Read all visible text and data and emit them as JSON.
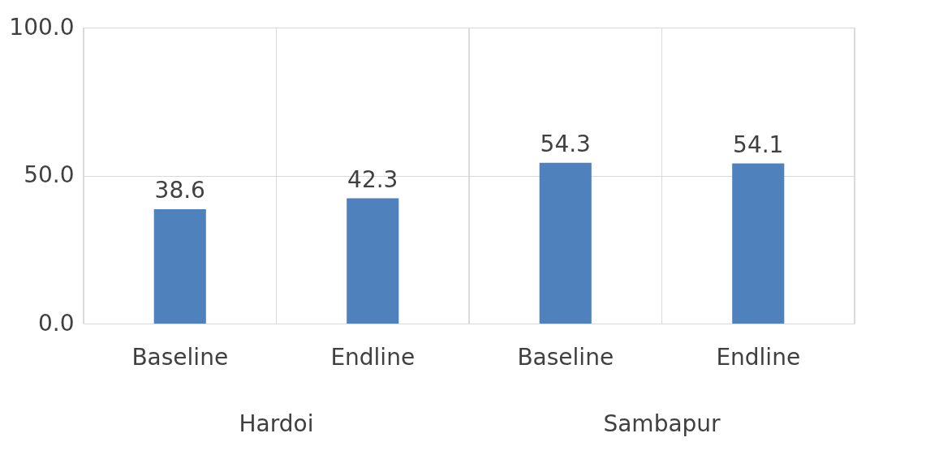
{
  "chart_data": {
    "type": "bar",
    "categories": [
      "Baseline",
      "Endline",
      "Baseline",
      "Endline"
    ],
    "values": [
      38.6,
      42.3,
      54.3,
      54.1
    ],
    "color": "#4f81bd",
    "ylim": [
      0,
      100
    ],
    "yticks": [
      {
        "value": 0,
        "label": "0.0"
      },
      {
        "value": 50,
        "label": "50.0"
      },
      {
        "value": 100,
        "label": "100.0"
      }
    ],
    "grid": true,
    "data_labels": true,
    "annotations": [
      "Hardoi",
      "Sambapur"
    ]
  }
}
